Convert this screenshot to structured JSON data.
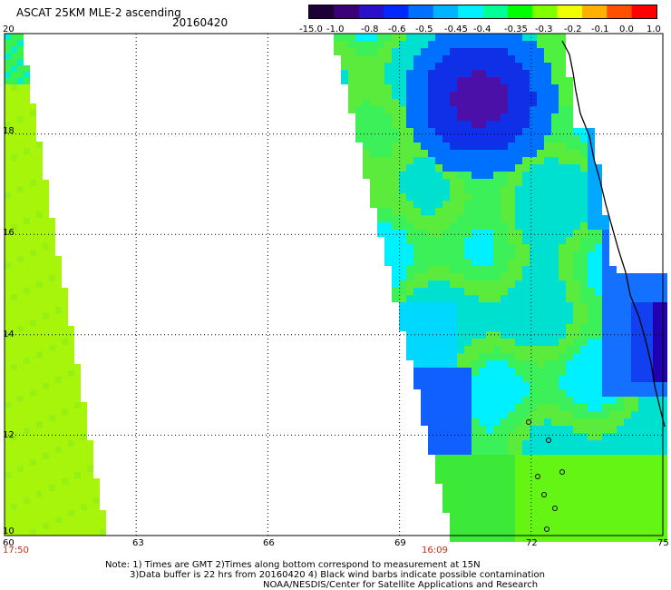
{
  "title": "ASCAT 25KM MLE-2 ascending",
  "date": "20160420",
  "colorbar": {
    "labels": [
      "-15.0",
      "-1.0",
      "-0.8",
      "-0.6",
      "-0.5",
      "-0.45",
      "-0.4",
      "-0.35",
      "-0.3",
      "-0.2",
      "-0.1",
      "0.0",
      "1.0"
    ],
    "colors": [
      "#1e0038",
      "#3c0078",
      "#2a10c8",
      "#0028ff",
      "#0070ff",
      "#00b4ff",
      "#00f0ff",
      "#00ff96",
      "#00ff00",
      "#80ff00",
      "#f0ff00",
      "#ffb000",
      "#ff5000",
      "#ff0000"
    ]
  },
  "map": {
    "lon_range": [
      60,
      75
    ],
    "lat_range": [
      10,
      20
    ],
    "lon_ticks": [
      "60",
      "63",
      "66",
      "69",
      "72",
      "75"
    ],
    "lat_ticks": [
      "20",
      "18",
      "16",
      "14",
      "12",
      "10"
    ],
    "pass_times": [
      "17:50",
      "16:09"
    ],
    "grid": "dotted"
  },
  "notes": [
    "Note: 1) Times are GMT 2)Times along bottom correspond to measurement at 15N",
    "3)Data buffer is 22 hrs from 20160420 4) Black wind barbs indicate possible contamination",
    "NOAA/NESDIS/Center for Satellite Applications and Research"
  ]
}
